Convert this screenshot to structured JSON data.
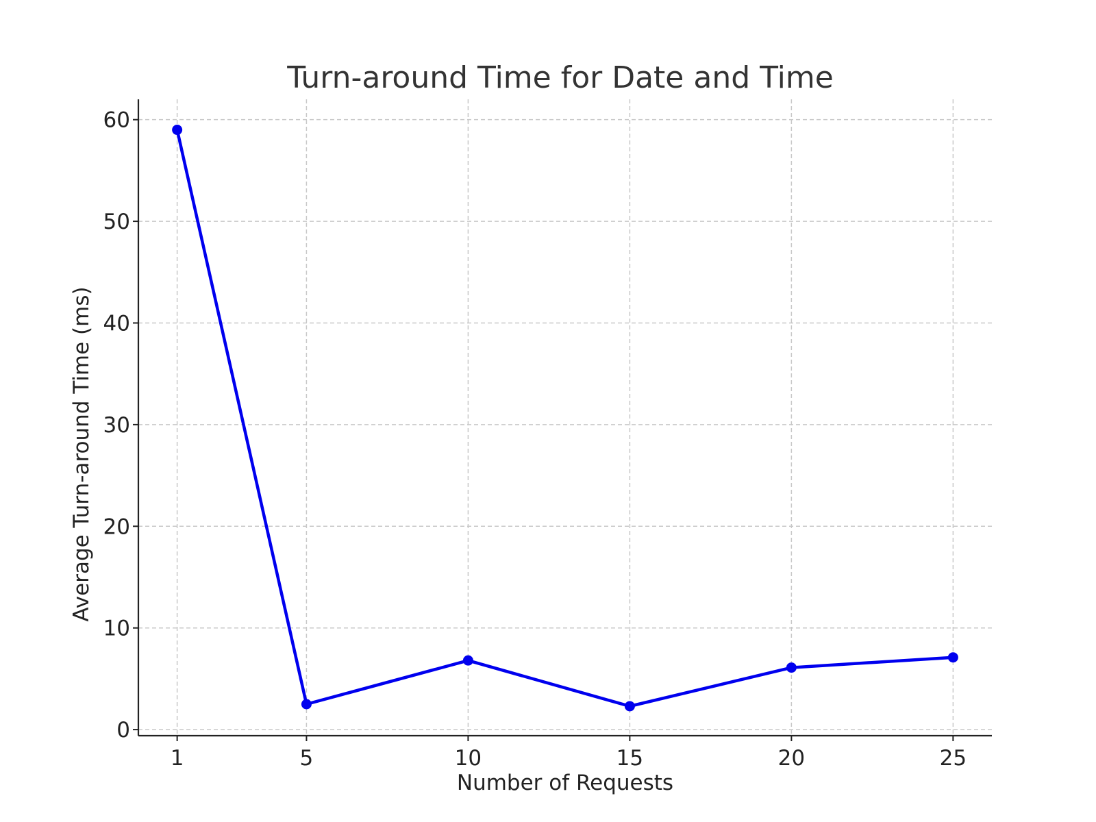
{
  "chart_data": {
    "type": "line",
    "title": "Turn-around Time for Date and Time",
    "xlabel": "Number of Requests",
    "ylabel": "Average Turn-around Time (ms)",
    "x": [
      1,
      5,
      10,
      15,
      20,
      25
    ],
    "x_ticks": [
      1,
      5,
      10,
      15,
      20,
      25
    ],
    "y_ticks": [
      0,
      10,
      20,
      30,
      40,
      50,
      60
    ],
    "xlim": [
      -0.2,
      26.2
    ],
    "ylim": [
      -0.6,
      62
    ],
    "grid": true,
    "series": [
      {
        "values": [
          59.0,
          2.5,
          6.8,
          2.3,
          6.1,
          7.1
        ],
        "color": "#0000ee",
        "marker": "circle"
      }
    ]
  }
}
